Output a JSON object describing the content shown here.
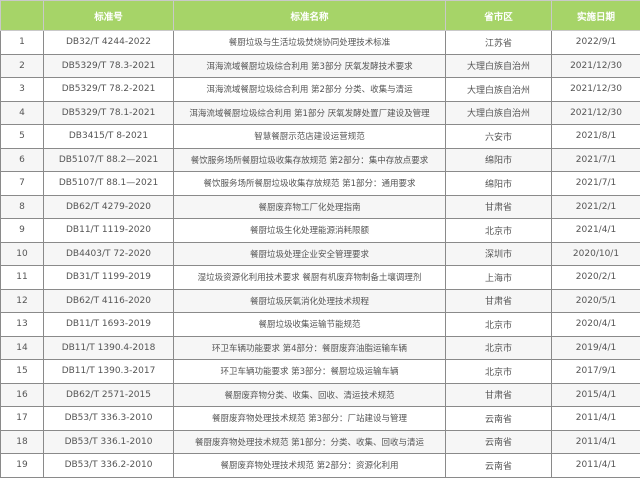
{
  "colors": {
    "header_bg": "#a6d468",
    "row_alt_bg": "#f6f6f6"
  },
  "table": {
    "headers": [
      "",
      "标准号",
      "标准名称",
      "省市区",
      "实施日期"
    ],
    "rows": [
      [
        "1",
        "DB32/T 4244-2022",
        "餐厨垃圾与生活垃圾焚烧协同处理技术标准",
        "江苏省",
        "2022/9/1"
      ],
      [
        "2",
        "DB5329/T 78.3-2021",
        "洱海流域餐厨垃圾综合利用 第3部分 厌氧发酵技术要求",
        "大理白族自治州",
        "2021/12/30"
      ],
      [
        "3",
        "DB5329/T 78.2-2021",
        "洱海流域餐厨垃圾综合利用 第2部分 分类、收集与清运",
        "大理白族自治州",
        "2021/12/30"
      ],
      [
        "4",
        "DB5329/T 78.1-2021",
        "洱海流域餐厨垃圾综合利用 第1部分 厌氧发酵处置厂建设及管理",
        "大理白族自治州",
        "2021/12/30"
      ],
      [
        "5",
        "DB3415/T 8-2021",
        "智慧餐厨示范店建设运营规范",
        "六安市",
        "2021/8/1"
      ],
      [
        "6",
        "DB5107/T 88.2—2021",
        "餐饮服务场所餐厨垃圾收集存放规范 第2部分：集中存放点要求",
        "绵阳市",
        "2021/7/1"
      ],
      [
        "7",
        "DB5107/T 88.1—2021",
        "餐饮服务场所餐厨垃圾收集存放规范 第1部分：通用要求",
        "绵阳市",
        "2021/7/1"
      ],
      [
        "8",
        "DB62/T 4279-2020",
        "餐厨废弃物工厂化处理指南",
        "甘肃省",
        "2021/2/1"
      ],
      [
        "9",
        "DB11/T 1119-2020",
        "餐厨垃圾生化处理能源消耗限额",
        "北京市",
        "2021/4/1"
      ],
      [
        "10",
        "DB4403/T 72-2020",
        "餐厨垃圾处理企业安全管理要求",
        "深圳市",
        "2020/10/1"
      ],
      [
        "11",
        "DB31/T 1199-2019",
        "湿垃圾资源化利用技术要求 餐厨有机废弃物制备土壤调理剂",
        "上海市",
        "2020/2/1"
      ],
      [
        "12",
        "DB62/T 4116-2020",
        "餐厨垃圾厌氧消化处理技术规程",
        "甘肃省",
        "2020/5/1"
      ],
      [
        "13",
        "DB11/T 1693-2019",
        "餐厨垃圾收集运输节能规范",
        "北京市",
        "2020/4/1"
      ],
      [
        "14",
        "DB11/T 1390.4-2018",
        "环卫车辆功能要求 第4部分：餐厨废弃油脂运输车辆",
        "北京市",
        "2019/4/1"
      ],
      [
        "15",
        "DB11/T 1390.3-2017",
        "环卫车辆功能要求 第3部分：餐厨垃圾运输车辆",
        "北京市",
        "2017/9/1"
      ],
      [
        "16",
        "DB62/T 2571-2015",
        "餐厨废弃物分类、收集、回收、清运技术规范",
        "甘肃省",
        "2015/4/1"
      ],
      [
        "17",
        "DB53/T 336.3-2010",
        "餐厨废弃物处理技术规范 第3部分：厂站建设与管理",
        "云南省",
        "2011/4/1"
      ],
      [
        "18",
        "DB53/T 336.1-2010",
        "餐厨废弃物处理技术规范 第1部分：分类、收集、回收与清运",
        "云南省",
        "2011/4/1"
      ],
      [
        "19",
        "DB53/T 336.2-2010",
        "餐厨废弃物处理技术规范 第2部分：资源化利用",
        "云南省",
        "2011/4/1"
      ]
    ]
  }
}
